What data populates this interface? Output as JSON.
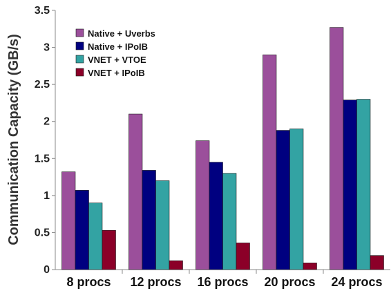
{
  "chart_data": {
    "type": "bar",
    "title": "",
    "xlabel": "",
    "ylabel": "Communication Capacity (GB/s)",
    "ylim": [
      0,
      3.5
    ],
    "yticks": [
      "0",
      "0.5",
      "1",
      "1.5",
      "2",
      "2.5",
      "3",
      "3.5"
    ],
    "categories": [
      "8 procs",
      "12 procs",
      "16 procs",
      "20 procs",
      "24 procs"
    ],
    "grid": false,
    "legend_position": "top-left",
    "series": [
      {
        "name": "Native + Uverbs",
        "color": "#9b4f9b",
        "values": [
          1.32,
          2.1,
          1.74,
          2.9,
          3.27
        ]
      },
      {
        "name": "Native + IPoIB",
        "color": "#000080",
        "values": [
          1.07,
          1.34,
          1.45,
          1.88,
          2.29
        ]
      },
      {
        "name": "VNET + VTOE",
        "color": "#33a3a3",
        "values": [
          0.9,
          1.2,
          1.3,
          1.9,
          2.3
        ]
      },
      {
        "name": "VNET + IPoIB",
        "color": "#8b0028",
        "values": [
          0.53,
          0.12,
          0.36,
          0.09,
          0.19
        ]
      }
    ]
  }
}
